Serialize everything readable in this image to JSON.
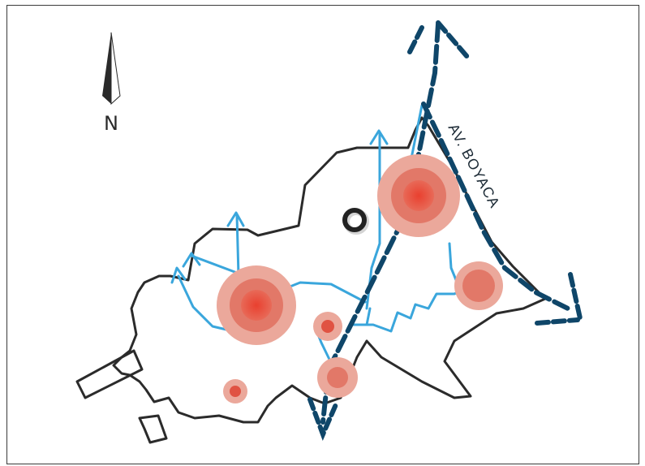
{
  "map": {
    "north_label": "N",
    "road_label": "AV. BOYACA",
    "colors": {
      "boundary": "#2b2b2b",
      "local_paths": "#3aa6dc",
      "main_axis": "#0f4669",
      "node_outer": "#eba89b",
      "node_mid": "#e27868",
      "node_core": "#e04b3c",
      "landmark": "#222222"
    },
    "icons": [
      "north-arrow-icon",
      "landmark-ring-icon"
    ]
  }
}
